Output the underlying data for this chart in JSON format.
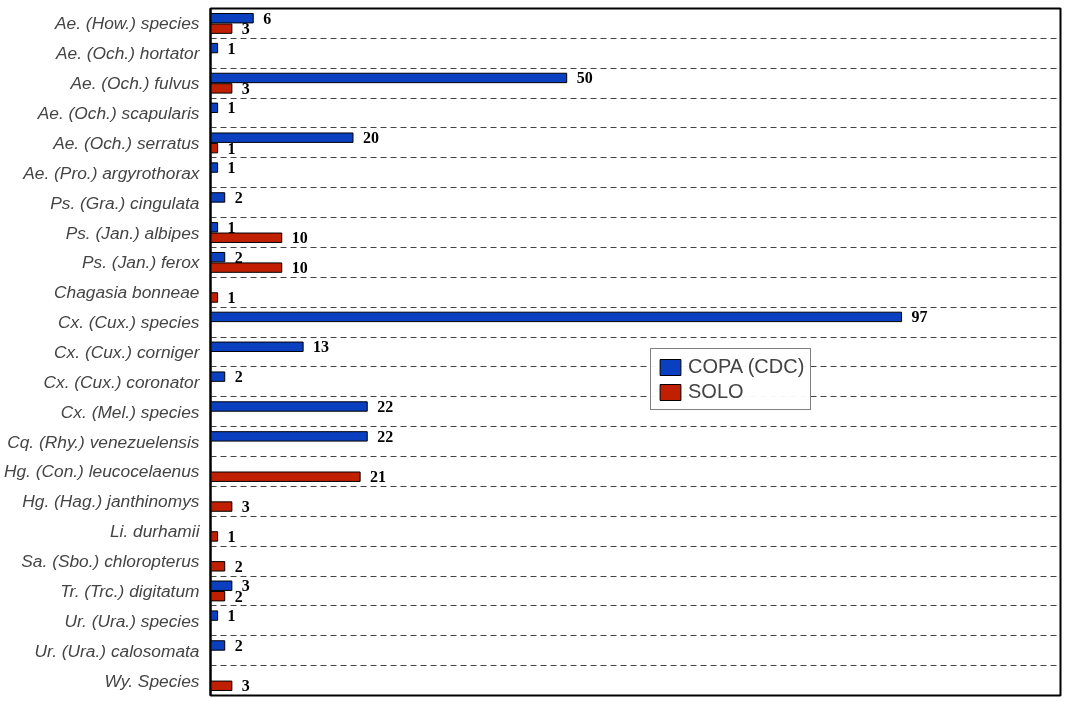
{
  "chart_data": {
    "type": "bar",
    "orientation": "horizontal",
    "categories": [
      "Ae. (How.) species",
      "Ae. (Och.) hortator",
      "Ae. (Och.) fulvus",
      "Ae. (Och.) scapularis",
      "Ae. (Och.) serratus",
      "Ae. (Pro.) argyrothorax",
      "Ps. (Gra.) cingulata",
      "Ps. (Jan.) albipes",
      "Ps. (Jan.) ferox",
      "Chagasia bonneae",
      "Cx. (Cux.) species",
      "Cx. (Cux.) corniger",
      "Cx. (Cux.) coronator",
      "Cx. (Mel.) species",
      "Cq. (Rhy.) venezuelensis",
      "Hg. (Con.) leucocelaenus",
      "Hg. (Hag.) janthinomys",
      "Li. durhamii",
      "Sa. (Sbo.) chloropterus",
      "Tr. (Trc.) digitatum",
      "Ur. (Ura.) species",
      "Ur. (Ura.) calosomata",
      "Wy. Species"
    ],
    "series": [
      {
        "name": "COPA (CDC)",
        "color": "#0a3fc0",
        "values": [
          6,
          1,
          50,
          1,
          20,
          1,
          2,
          1,
          2,
          null,
          97,
          13,
          2,
          22,
          22,
          null,
          null,
          null,
          null,
          3,
          1,
          2,
          null
        ]
      },
      {
        "name": "SOLO",
        "color": "#c02000",
        "values": [
          3,
          null,
          3,
          null,
          1,
          null,
          null,
          10,
          10,
          1,
          null,
          null,
          null,
          null,
          null,
          21,
          3,
          1,
          2,
          2,
          null,
          null,
          3
        ]
      }
    ],
    "data_labels": true,
    "grid": "y",
    "legend": "right"
  }
}
